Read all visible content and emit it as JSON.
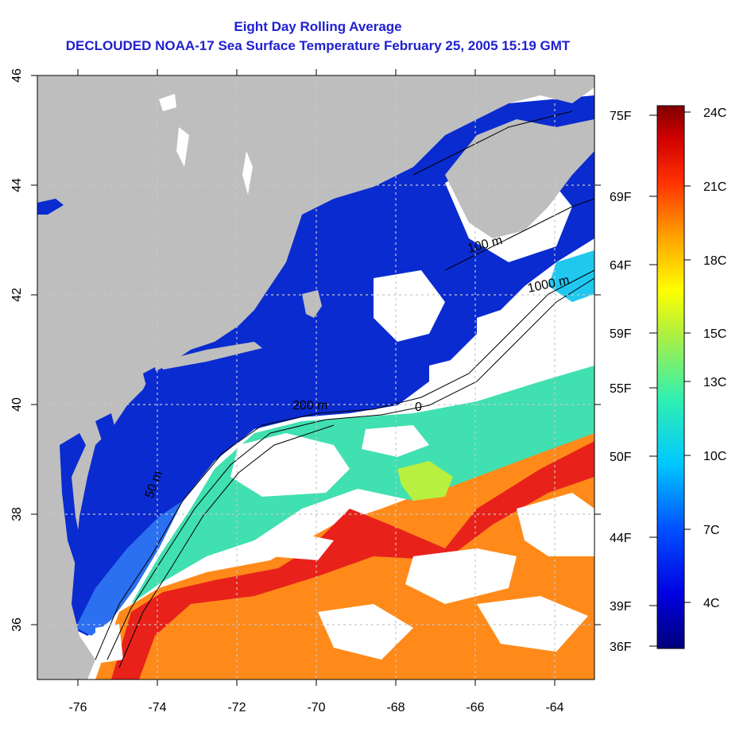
{
  "title": {
    "line1": "Eight Day Rolling Average",
    "line2": "DECLOUDED NOAA-17 Sea Surface Temperature February 25, 2005 15:19 GMT"
  },
  "map": {
    "lon_ticks": [
      "-76",
      "-74",
      "-72",
      "-70",
      "-68",
      "-66",
      "-64"
    ],
    "lat_ticks": [
      "36",
      "38",
      "40",
      "42",
      "44",
      "46"
    ],
    "lon_range": [
      -77,
      -63
    ],
    "lat_range": [
      35,
      46
    ],
    "contour_labels": [
      "100 m",
      "1000 m",
      "200 m",
      "50 m",
      "0"
    ],
    "colors": {
      "land": "#bebebe",
      "cold": "#0a2bd0",
      "cloud": "#ffffff"
    }
  },
  "colorbar": {
    "fahrenheit_labels": [
      "75F",
      "69F",
      "64F",
      "59F",
      "55F",
      "50F",
      "44F",
      "39F",
      "36F"
    ],
    "celsius_labels": [
      "24C",
      "21C",
      "18C",
      "15C",
      "13C",
      "10C",
      "7C",
      "4C"
    ]
  }
}
